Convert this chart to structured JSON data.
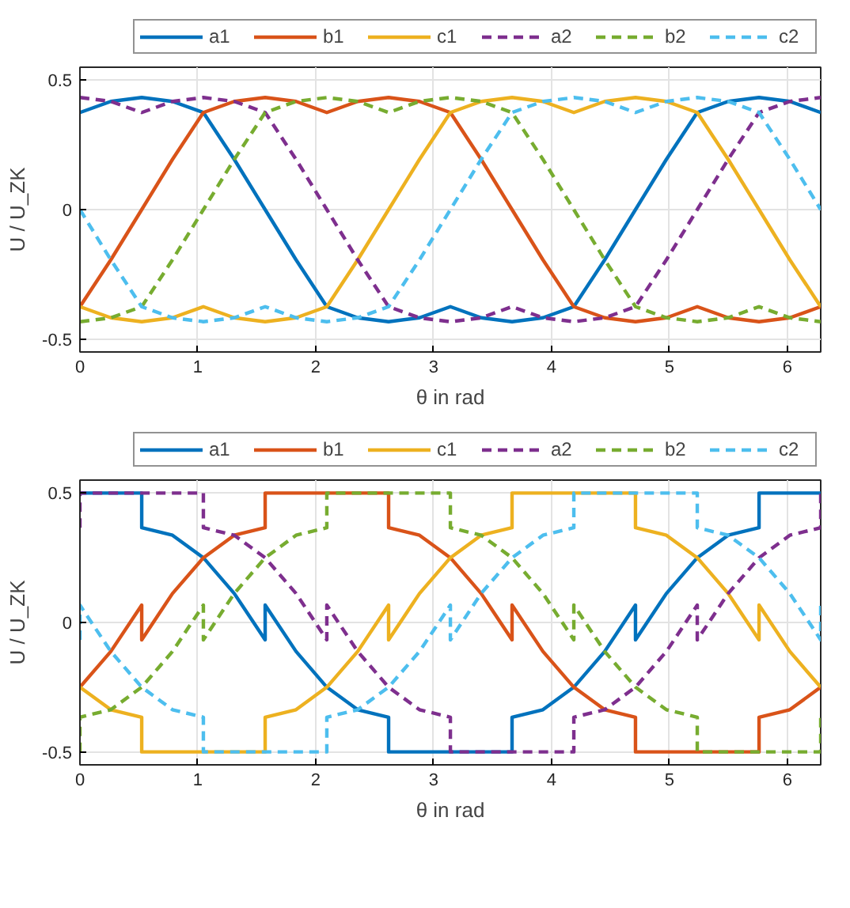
{
  "chart_data": [
    {
      "type": "line",
      "xlabel": "θ in rad",
      "ylabel": "U / U_ZK",
      "grid": true,
      "legend": "top",
      "xlim": [
        0,
        6.283
      ],
      "xticks": [
        0,
        1,
        2,
        3,
        4,
        5,
        6
      ],
      "ylim": [
        -0.55,
        0.55
      ],
      "yticks": [
        -0.5,
        0,
        0.5
      ],
      "x": [
        0,
        0.262,
        0.524,
        0.785,
        1.047,
        1.309,
        1.571,
        1.833,
        2.094,
        2.356,
        2.618,
        2.88,
        3.142,
        3.403,
        3.665,
        3.927,
        4.189,
        4.451,
        4.712,
        4.974,
        5.236,
        5.498,
        5.76,
        6.021,
        6.283
      ],
      "series": [
        {
          "name": "a1",
          "color": "#0072bd",
          "line_style": "solid",
          "values": [
            0.375,
            0.418,
            0.433,
            0.418,
            0.375,
            0.194,
            0,
            -0.194,
            -0.375,
            -0.418,
            -0.433,
            -0.418,
            -0.375,
            -0.418,
            -0.433,
            -0.418,
            -0.375,
            -0.194,
            0,
            0.194,
            0.375,
            0.418,
            0.433,
            0.418,
            0.375
          ]
        },
        {
          "name": "b1",
          "color": "#d95319",
          "line_style": "solid",
          "values": [
            -0.375,
            -0.194,
            0,
            0.194,
            0.375,
            0.418,
            0.433,
            0.418,
            0.375,
            0.418,
            0.433,
            0.418,
            0.375,
            0.194,
            0,
            -0.194,
            -0.375,
            -0.418,
            -0.433,
            -0.418,
            -0.375,
            -0.418,
            -0.433,
            -0.418,
            -0.375
          ]
        },
        {
          "name": "c1",
          "color": "#edb120",
          "line_style": "solid",
          "values": [
            -0.375,
            -0.418,
            -0.433,
            -0.418,
            -0.375,
            -0.418,
            -0.433,
            -0.418,
            -0.375,
            -0.194,
            0,
            0.194,
            0.375,
            0.418,
            0.433,
            0.418,
            0.375,
            0.418,
            0.433,
            0.418,
            0.375,
            0.194,
            0,
            -0.194,
            -0.375
          ]
        },
        {
          "name": "a2",
          "color": "#7e2f8e",
          "line_style": "dashed",
          "values": [
            0.433,
            0.418,
            0.375,
            0.418,
            0.433,
            0.418,
            0.375,
            0.194,
            0,
            -0.194,
            -0.375,
            -0.418,
            -0.433,
            -0.418,
            -0.375,
            -0.418,
            -0.433,
            -0.418,
            -0.375,
            -0.194,
            0,
            0.194,
            0.375,
            0.418,
            0.433
          ]
        },
        {
          "name": "b2",
          "color": "#77ac30",
          "line_style": "dashed",
          "values": [
            -0.433,
            -0.418,
            -0.375,
            -0.194,
            0,
            0.194,
            0.375,
            0.418,
            0.433,
            0.418,
            0.375,
            0.418,
            0.433,
            0.418,
            0.375,
            0.194,
            0,
            -0.194,
            -0.375,
            -0.418,
            -0.433,
            -0.418,
            -0.375,
            -0.418,
            -0.433
          ]
        },
        {
          "name": "c2",
          "color": "#4dbeee",
          "line_style": "dashed",
          "values": [
            0,
            -0.194,
            -0.375,
            -0.418,
            -0.433,
            -0.418,
            -0.375,
            -0.418,
            -0.433,
            -0.418,
            -0.375,
            -0.194,
            0,
            0.194,
            0.375,
            0.418,
            0.433,
            0.418,
            0.375,
            0.418,
            0.433,
            0.418,
            0.375,
            0.194,
            0
          ]
        }
      ]
    },
    {
      "type": "line",
      "xlabel": "θ in rad",
      "ylabel": "U / U_ZK",
      "grid": true,
      "legend": "top",
      "xlim": [
        0,
        6.283
      ],
      "xticks": [
        0,
        1,
        2,
        3,
        4,
        5,
        6
      ],
      "ylim": [
        -0.55,
        0.55
      ],
      "yticks": [
        -0.5,
        0,
        0.5
      ],
      "x": [
        0,
        0,
        0.262,
        0.524,
        0.524,
        0.785,
        1.047,
        1.047,
        1.309,
        1.571,
        1.571,
        1.833,
        2.094,
        2.094,
        2.356,
        2.618,
        2.618,
        2.88,
        3.142,
        3.142,
        3.403,
        3.665,
        3.665,
        3.927,
        4.189,
        4.189,
        4.451,
        4.712,
        4.712,
        4.974,
        5.236,
        5.236,
        5.498,
        5.76,
        5.76,
        6.021,
        6.283,
        6.283
      ],
      "series": [
        {
          "name": "a1",
          "color": "#0072bd",
          "line_style": "solid",
          "values": [
            0.5,
            0.5,
            0.5,
            0.5,
            0.366,
            0.337,
            0.25,
            0.25,
            0.112,
            -0.067,
            0.067,
            -0.112,
            -0.25,
            -0.25,
            -0.337,
            -0.366,
            -0.5,
            -0.5,
            -0.5,
            -0.5,
            -0.5,
            -0.5,
            -0.366,
            -0.337,
            -0.25,
            -0.25,
            -0.112,
            0.067,
            -0.067,
            0.112,
            0.25,
            0.25,
            0.337,
            0.366,
            0.5,
            0.5,
            0.5,
            0.5
          ]
        },
        {
          "name": "b1",
          "color": "#d95319",
          "line_style": "solid",
          "values": [
            -0.25,
            -0.25,
            -0.112,
            0.067,
            -0.067,
            0.112,
            0.25,
            0.25,
            0.337,
            0.366,
            0.5,
            0.5,
            0.5,
            0.5,
            0.5,
            0.5,
            0.366,
            0.337,
            0.25,
            0.25,
            0.112,
            -0.067,
            0.067,
            -0.112,
            -0.25,
            -0.25,
            -0.337,
            -0.366,
            -0.5,
            -0.5,
            -0.5,
            -0.5,
            -0.5,
            -0.5,
            -0.366,
            -0.337,
            -0.25,
            -0.25
          ]
        },
        {
          "name": "c1",
          "color": "#edb120",
          "line_style": "solid",
          "values": [
            -0.25,
            -0.25,
            -0.337,
            -0.366,
            -0.5,
            -0.5,
            -0.5,
            -0.5,
            -0.5,
            -0.5,
            -0.366,
            -0.337,
            -0.25,
            -0.25,
            -0.112,
            0.067,
            -0.067,
            0.112,
            0.25,
            0.25,
            0.337,
            0.366,
            0.5,
            0.5,
            0.5,
            0.5,
            0.5,
            0.5,
            0.366,
            0.337,
            0.25,
            0.25,
            0.112,
            -0.067,
            0.067,
            -0.112,
            -0.25,
            -0.25
          ]
        },
        {
          "name": "a2",
          "color": "#7e2f8e",
          "line_style": "dashed",
          "values": [
            0.366,
            0.5,
            0.5,
            0.5,
            0.5,
            0.5,
            0.5,
            0.366,
            0.337,
            0.25,
            0.25,
            0.112,
            -0.067,
            0.067,
            -0.112,
            -0.25,
            -0.25,
            -0.337,
            -0.366,
            -0.5,
            -0.5,
            -0.5,
            -0.5,
            -0.5,
            -0.5,
            -0.366,
            -0.337,
            -0.25,
            -0.25,
            -0.112,
            0.067,
            -0.067,
            0.112,
            0.25,
            0.25,
            0.337,
            0.366,
            0.5
          ]
        },
        {
          "name": "b2",
          "color": "#77ac30",
          "line_style": "dashed",
          "values": [
            -0.5,
            -0.366,
            -0.337,
            -0.25,
            -0.25,
            -0.112,
            0.067,
            -0.067,
            0.112,
            0.25,
            0.25,
            0.337,
            0.366,
            0.5,
            0.5,
            0.5,
            0.5,
            0.5,
            0.5,
            0.366,
            0.337,
            0.25,
            0.25,
            0.112,
            -0.067,
            0.067,
            -0.112,
            -0.25,
            -0.25,
            -0.337,
            -0.366,
            -0.5,
            -0.5,
            -0.5,
            -0.5,
            -0.5,
            -0.5,
            -0.366
          ]
        },
        {
          "name": "c2",
          "color": "#4dbeee",
          "line_style": "dashed",
          "values": [
            -0.067,
            0.067,
            -0.112,
            -0.25,
            -0.25,
            -0.337,
            -0.366,
            -0.5,
            -0.5,
            -0.5,
            -0.5,
            -0.5,
            -0.5,
            -0.366,
            -0.337,
            -0.25,
            -0.25,
            -0.112,
            0.067,
            -0.067,
            0.112,
            0.25,
            0.25,
            0.337,
            0.366,
            0.5,
            0.5,
            0.5,
            0.5,
            0.5,
            0.5,
            0.366,
            0.337,
            0.25,
            0.25,
            0.112,
            -0.067,
            0.067
          ]
        }
      ]
    }
  ]
}
